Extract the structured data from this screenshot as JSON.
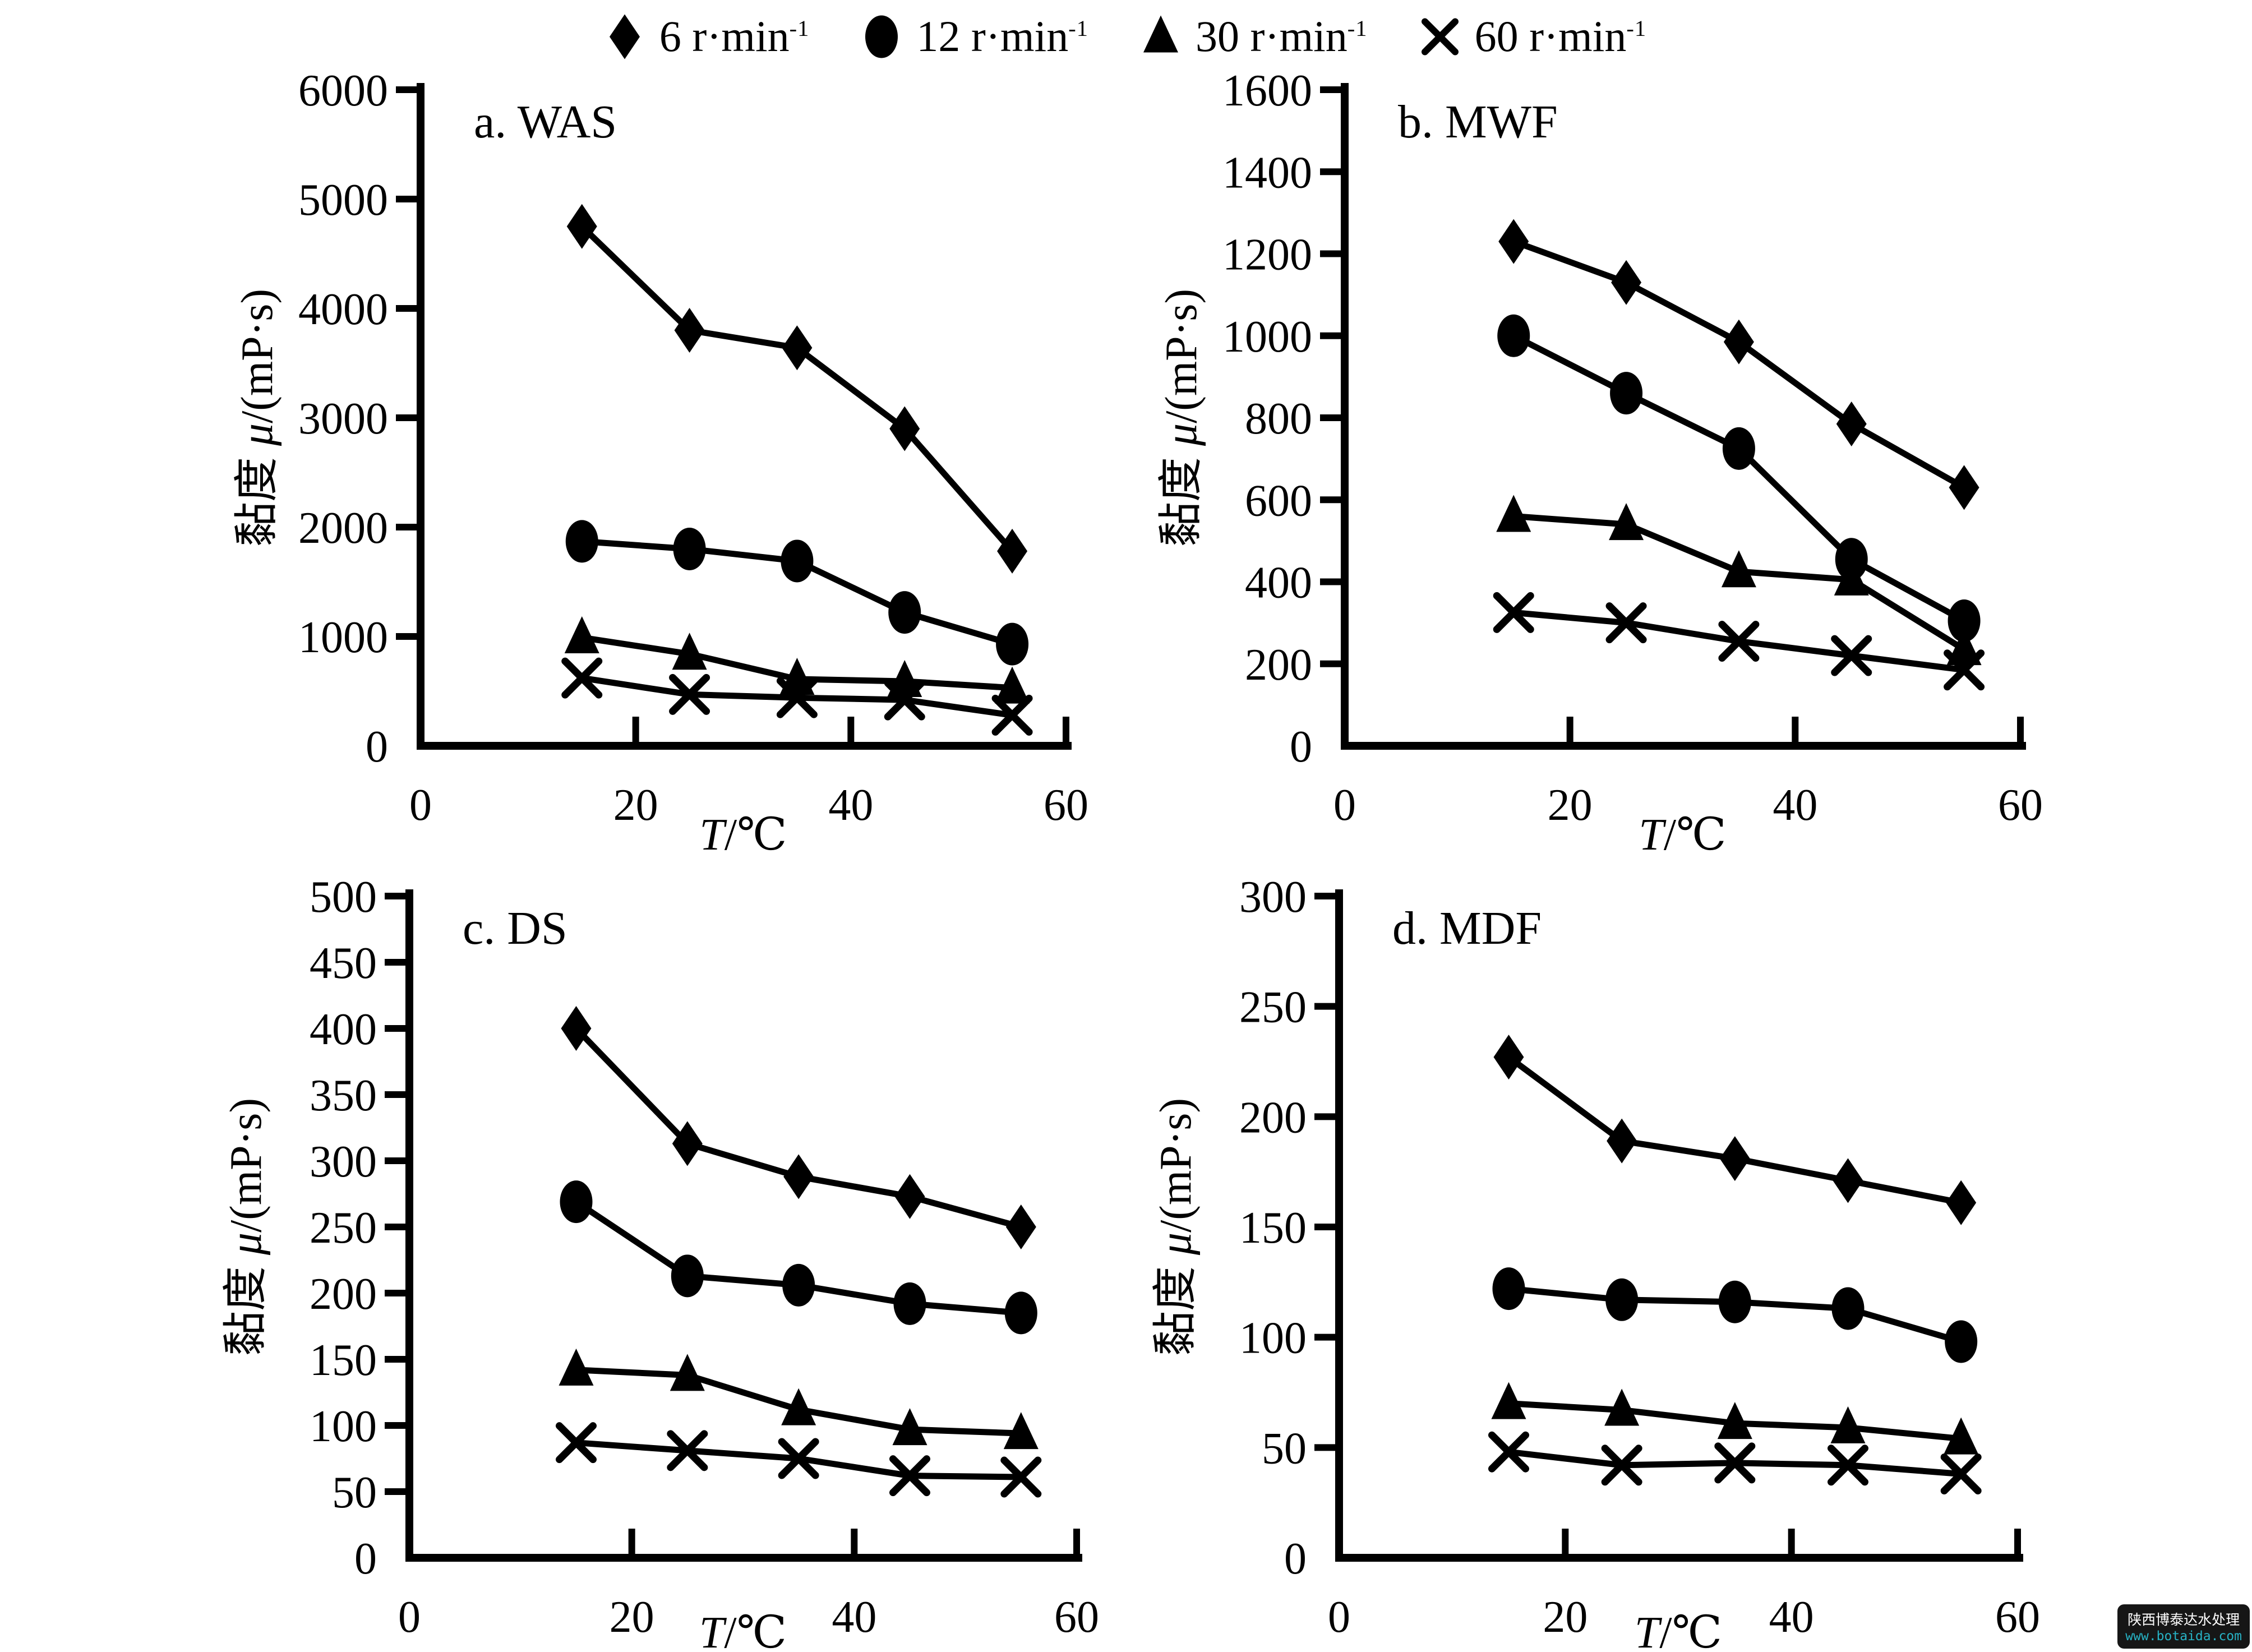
{
  "page": {
    "background": "#ffffff",
    "ink": "#000000"
  },
  "legend": {
    "position": "top-center",
    "items": [
      {
        "marker": "diamond",
        "label": "6 r·min⁻¹",
        "label_base": "6 r·min",
        "label_sup": "-1"
      },
      {
        "marker": "circle",
        "label": "12 r·min⁻¹",
        "label_base": "12 r·min",
        "label_sup": "-1"
      },
      {
        "marker": "triangle",
        "label": "30 r·min⁻¹",
        "label_base": "30 r·min",
        "label_sup": "-1"
      },
      {
        "marker": "x-cross",
        "label": "60 r·min⁻¹",
        "label_base": "60 r·min",
        "label_sup": "-1"
      }
    ]
  },
  "watermark": {
    "line1": "陕西博泰达水处理",
    "line2": "www.botaida.com",
    "bg": "#161616",
    "line1_color": "#ffffff",
    "line2_color": "#27b2c4"
  },
  "chart_data": [
    {
      "type": "line",
      "panel": "a",
      "title": "a. WAS",
      "xlabel": "T/℃",
      "ylabel": "黏度 μ/(mP·s)",
      "x": [
        15,
        25,
        35,
        45,
        55
      ],
      "xlim": [
        0,
        60
      ],
      "xticks": [
        0,
        20,
        40,
        60
      ],
      "ylim": [
        0,
        6000
      ],
      "yticks": [
        0,
        1000,
        2000,
        3000,
        4000,
        5000,
        6000
      ],
      "grid": false,
      "series": [
        {
          "name": "6 r·min⁻¹",
          "marker": "diamond",
          "values": [
            4750,
            3800,
            3640,
            2900,
            1780
          ]
        },
        {
          "name": "12 r·min⁻¹",
          "marker": "circle",
          "values": [
            1870,
            1800,
            1690,
            1220,
            930
          ]
        },
        {
          "name": "30 r·min⁻¹",
          "marker": "triangle",
          "values": [
            990,
            840,
            610,
            590,
            530
          ]
        },
        {
          "name": "60 r·min⁻¹",
          "marker": "x-cross",
          "values": [
            620,
            470,
            440,
            420,
            280
          ]
        }
      ]
    },
    {
      "type": "line",
      "panel": "b",
      "title": "b. MWF",
      "xlabel": "T/℃",
      "ylabel": "黏度 μ/(mP·s)",
      "x": [
        15,
        25,
        35,
        45,
        55
      ],
      "xlim": [
        0,
        60
      ],
      "xticks": [
        0,
        20,
        40,
        60
      ],
      "ylim": [
        0,
        1600
      ],
      "yticks": [
        0,
        200,
        400,
        600,
        800,
        1000,
        1200,
        1400,
        1600
      ],
      "grid": false,
      "series": [
        {
          "name": "6 r·min⁻¹",
          "marker": "diamond",
          "values": [
            1230,
            1130,
            985,
            785,
            630
          ]
        },
        {
          "name": "12 r·min⁻¹",
          "marker": "circle",
          "values": [
            1000,
            860,
            725,
            455,
            305
          ]
        },
        {
          "name": "30 r·min⁻¹",
          "marker": "triangle",
          "values": [
            560,
            540,
            425,
            405,
            235
          ]
        },
        {
          "name": "60 r·min⁻¹",
          "marker": "x-cross",
          "values": [
            325,
            300,
            255,
            220,
            185
          ]
        }
      ]
    },
    {
      "type": "line",
      "panel": "c",
      "title": "c. DS",
      "xlabel": "T/℃",
      "ylabel": "黏度 μ/(mP·s)",
      "x": [
        15,
        25,
        35,
        45,
        55
      ],
      "xlim": [
        0,
        60
      ],
      "xticks": [
        0,
        20,
        40,
        60
      ],
      "ylim": [
        0,
        500
      ],
      "yticks": [
        0,
        50,
        100,
        150,
        200,
        250,
        300,
        350,
        400,
        450,
        500
      ],
      "grid": false,
      "series": [
        {
          "name": "6 r·min⁻¹",
          "marker": "diamond",
          "values": [
            400,
            313,
            288,
            273,
            250
          ]
        },
        {
          "name": "12 r·min⁻¹",
          "marker": "circle",
          "values": [
            269,
            213,
            206,
            192,
            185
          ]
        },
        {
          "name": "30 r·min⁻¹",
          "marker": "triangle",
          "values": [
            142,
            138,
            112,
            97,
            94
          ]
        },
        {
          "name": "60 r·min⁻¹",
          "marker": "x-cross",
          "values": [
            87,
            81,
            75,
            62,
            61
          ]
        }
      ]
    },
    {
      "type": "line",
      "panel": "d",
      "title": "d. MDF",
      "xlabel": "T/℃",
      "ylabel": "黏度 μ/(mP·s)",
      "x": [
        15,
        25,
        35,
        45,
        55
      ],
      "xlim": [
        0,
        60
      ],
      "xticks": [
        0,
        20,
        40,
        60
      ],
      "ylim": [
        0,
        300
      ],
      "yticks": [
        0,
        50,
        100,
        150,
        200,
        250,
        300
      ],
      "grid": false,
      "series": [
        {
          "name": "6 r·min⁻¹",
          "marker": "diamond",
          "values": [
            227,
            189,
            181,
            171,
            161
          ]
        },
        {
          "name": "12 r·min⁻¹",
          "marker": "circle",
          "values": [
            122,
            117,
            116,
            113,
            98
          ]
        },
        {
          "name": "30 r·min⁻¹",
          "marker": "triangle",
          "values": [
            70,
            67,
            61,
            59,
            54
          ]
        },
        {
          "name": "60 r·min⁻¹",
          "marker": "x-cross",
          "values": [
            48,
            42,
            43,
            42,
            38
          ]
        }
      ]
    }
  ]
}
